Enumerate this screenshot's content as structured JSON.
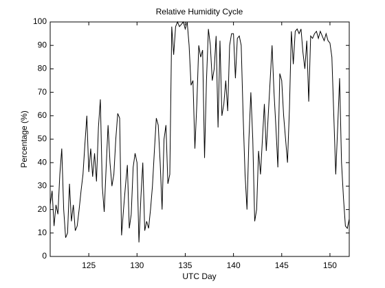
{
  "chart_data": {
    "type": "line",
    "title": "Relative Humidity Cycle",
    "x_label": "UTC Day",
    "y_label": "Percentage (%)",
    "xlim": [
      121,
      152
    ],
    "ylim": [
      0,
      100
    ],
    "xticks": [
      125,
      130,
      135,
      140,
      145,
      150
    ],
    "yticks": [
      0,
      10,
      20,
      30,
      40,
      50,
      60,
      70,
      80,
      90,
      100
    ],
    "grid": false,
    "x": [
      121.0,
      121.2,
      121.4,
      121.6,
      121.8,
      122.0,
      122.2,
      122.4,
      122.6,
      122.8,
      123.0,
      123.2,
      123.4,
      123.6,
      123.8,
      124.0,
      124.2,
      124.4,
      124.6,
      124.8,
      125.0,
      125.2,
      125.4,
      125.6,
      125.8,
      126.0,
      126.2,
      126.4,
      126.6,
      126.8,
      127.0,
      127.2,
      127.4,
      127.6,
      127.8,
      128.0,
      128.2,
      128.4,
      128.6,
      128.8,
      129.0,
      129.2,
      129.4,
      129.6,
      129.8,
      130.0,
      130.2,
      130.4,
      130.6,
      130.8,
      131.0,
      131.2,
      131.4,
      131.6,
      131.8,
      132.0,
      132.2,
      132.4,
      132.6,
      132.8,
      133.0,
      133.2,
      133.4,
      133.6,
      133.8,
      134.0,
      134.2,
      134.4,
      134.6,
      134.8,
      135.0,
      135.2,
      135.4,
      135.6,
      135.8,
      136.0,
      136.2,
      136.4,
      136.6,
      136.8,
      137.0,
      137.2,
      137.4,
      137.6,
      137.8,
      138.0,
      138.2,
      138.4,
      138.6,
      138.8,
      139.0,
      139.2,
      139.4,
      139.6,
      139.8,
      140.0,
      140.2,
      140.4,
      140.6,
      140.8,
      141.0,
      141.2,
      141.4,
      141.6,
      141.8,
      142.0,
      142.2,
      142.4,
      142.6,
      142.8,
      143.0,
      143.2,
      143.4,
      143.6,
      143.8,
      144.0,
      144.2,
      144.4,
      144.6,
      144.8,
      145.0,
      145.2,
      145.4,
      145.6,
      145.8,
      146.0,
      146.2,
      146.4,
      146.6,
      146.8,
      147.0,
      147.2,
      147.4,
      147.6,
      147.8,
      148.0,
      148.2,
      148.4,
      148.6,
      148.8,
      149.0,
      149.2,
      149.4,
      149.6,
      149.8,
      150.0,
      150.2,
      150.4,
      150.6,
      150.8,
      151.0,
      151.2,
      151.4,
      151.6,
      151.8,
      152.0
    ],
    "series": [
      {
        "name": "Relative Humidity",
        "color": "#000000",
        "values": [
          22,
          28,
          13,
          22,
          18,
          35,
          46,
          20,
          8,
          10,
          31,
          15,
          22,
          11,
          13,
          20,
          28,
          35,
          48,
          60,
          36,
          46,
          34,
          44,
          32,
          55,
          67,
          30,
          19,
          38,
          56,
          40,
          30,
          35,
          50,
          61,
          59,
          9,
          20,
          30,
          39,
          12,
          18,
          38,
          44,
          40,
          6,
          25,
          40,
          11,
          15,
          12,
          20,
          30,
          45,
          59,
          56,
          40,
          20,
          50,
          56,
          31,
          35,
          98,
          86,
          98,
          100,
          98,
          99,
          100,
          97,
          100,
          90,
          73,
          75,
          46,
          65,
          90,
          85,
          88,
          42,
          75,
          97,
          90,
          75,
          80,
          94,
          55,
          92,
          60,
          65,
          75,
          62,
          90,
          95,
          95,
          76,
          93,
          94,
          90,
          60,
          35,
          20,
          50,
          70,
          50,
          15,
          20,
          45,
          35,
          50,
          65,
          45,
          60,
          75,
          90,
          70,
          55,
          38,
          78,
          75,
          60,
          50,
          40,
          63,
          96,
          82,
          96,
          97,
          95,
          97,
          87,
          80,
          92,
          66,
          94,
          93,
          95,
          96,
          93,
          96,
          94,
          92,
          95,
          92,
          91,
          85,
          60,
          35,
          55,
          76,
          40,
          25,
          13,
          12,
          16
        ]
      }
    ]
  }
}
